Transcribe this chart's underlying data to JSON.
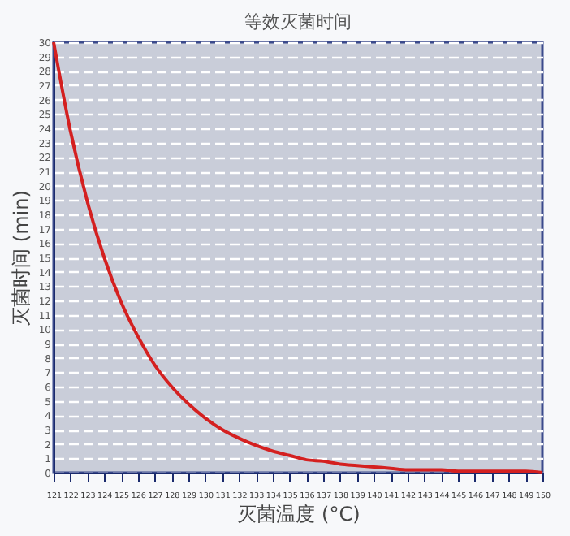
{
  "chart_data": {
    "type": "line",
    "title": "等效灭菌时间",
    "xlabel": "灭菌温度 (°C)",
    "ylabel": "灭菌时间 (min)",
    "x": [
      121,
      122,
      123,
      124,
      125,
      126,
      127,
      128,
      129,
      130,
      131,
      132,
      133,
      134,
      135,
      136,
      137,
      138,
      139,
      140,
      141,
      142,
      143,
      144,
      145,
      146,
      147,
      148,
      149,
      150
    ],
    "series": [
      {
        "color": "#d42020",
        "values": [
          30,
          23.8,
          18.9,
          15.0,
          11.9,
          9.5,
          7.5,
          6.0,
          4.8,
          3.8,
          3.0,
          2.4,
          1.9,
          1.5,
          1.2,
          0.9,
          0.8,
          0.6,
          0.5,
          0.4,
          0.3,
          0.2,
          0.2,
          0.2,
          0.1,
          0.1,
          0.1,
          0.1,
          0.1,
          0.0
        ]
      }
    ],
    "xlim": [
      121,
      150
    ],
    "ylim": [
      0,
      30
    ],
    "xticks": [
      121,
      122,
      123,
      124,
      125,
      126,
      127,
      128,
      129,
      130,
      131,
      132,
      133,
      134,
      135,
      136,
      137,
      138,
      139,
      140,
      141,
      142,
      143,
      144,
      145,
      146,
      147,
      148,
      149,
      150
    ],
    "yticks": [
      0,
      1,
      2,
      3,
      4,
      5,
      6,
      7,
      8,
      9,
      10,
      11,
      12,
      13,
      14,
      15,
      16,
      17,
      18,
      19,
      20,
      21,
      22,
      23,
      24,
      25,
      26,
      27,
      28,
      29,
      30
    ],
    "grid": "y",
    "marker": "none",
    "line_style": "solid"
  }
}
